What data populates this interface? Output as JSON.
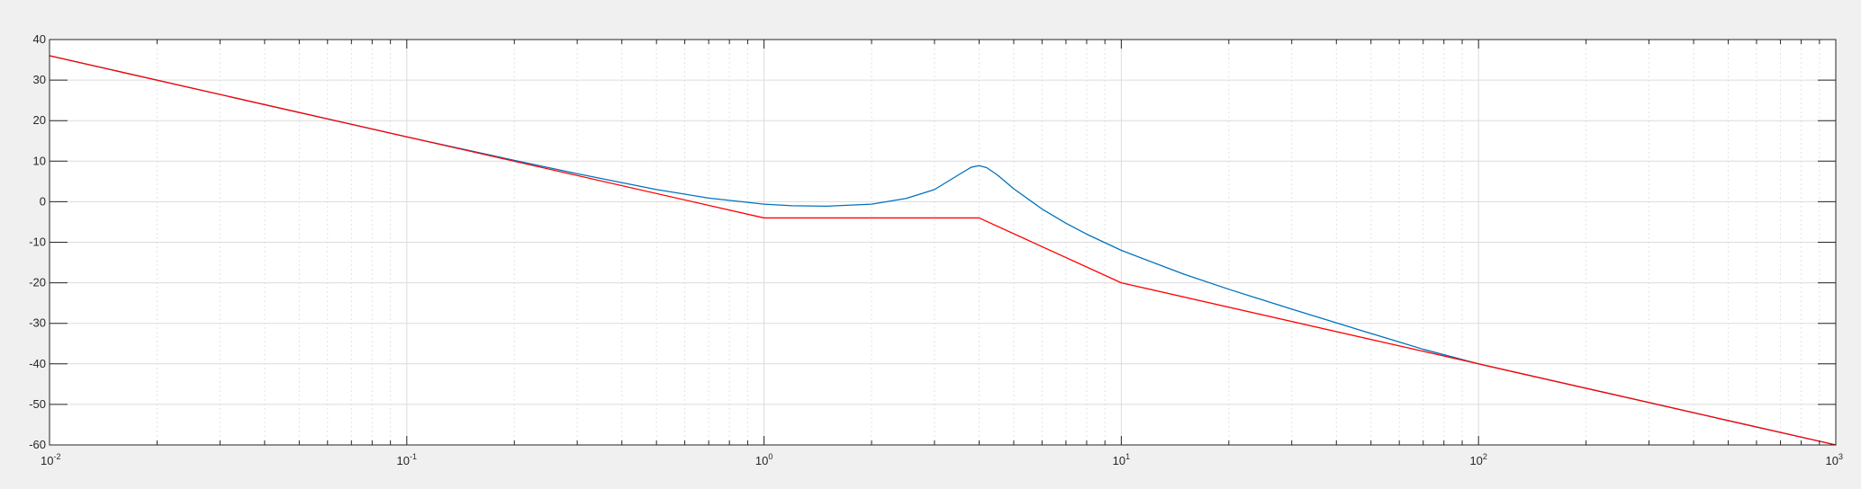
{
  "chart_data": {
    "type": "line",
    "title": "",
    "xlabel": "",
    "ylabel": "",
    "x_scale": "log",
    "xlim": [
      0.01,
      1000
    ],
    "ylim": [
      -60,
      40
    ],
    "grid": true,
    "minor_grid_x": true,
    "background_color": "#f0f0f0",
    "axes_color": "#ffffff",
    "x_ticks": [
      {
        "value": 0.01,
        "base": "10",
        "exp": "-2"
      },
      {
        "value": 0.1,
        "base": "10",
        "exp": "-1"
      },
      {
        "value": 1,
        "base": "10",
        "exp": "0"
      },
      {
        "value": 10,
        "base": "10",
        "exp": "1"
      },
      {
        "value": 100,
        "base": "10",
        "exp": "2"
      },
      {
        "value": 1000,
        "base": "10",
        "exp": "3"
      }
    ],
    "y_ticks": [
      40,
      30,
      20,
      10,
      0,
      -10,
      -20,
      -30,
      -40,
      -50,
      -60
    ],
    "y_tick_labels": [
      "40",
      "30",
      "20",
      "10",
      "0",
      "-10",
      "-20",
      "-30",
      "-40",
      "-50",
      "-60"
    ],
    "series": [
      {
        "color": "#0072bd",
        "points": [
          [
            0.01,
            36.0
          ],
          [
            0.02,
            30.0
          ],
          [
            0.05,
            22.0
          ],
          [
            0.1,
            16.0
          ],
          [
            0.2,
            10.2
          ],
          [
            0.3,
            6.9
          ],
          [
            0.5,
            3.0
          ],
          [
            0.7,
            0.9
          ],
          [
            1.0,
            -0.6
          ],
          [
            1.2,
            -1.0
          ],
          [
            1.5,
            -1.1
          ],
          [
            2.0,
            -0.6
          ],
          [
            2.5,
            0.8
          ],
          [
            3.0,
            3.0
          ],
          [
            3.5,
            6.6
          ],
          [
            3.8,
            8.5
          ],
          [
            4.0,
            8.9
          ],
          [
            4.2,
            8.4
          ],
          [
            4.5,
            6.6
          ],
          [
            5.0,
            3.2
          ],
          [
            6.0,
            -1.8
          ],
          [
            7.0,
            -5.3
          ],
          [
            8.0,
            -8.0
          ],
          [
            10.0,
            -12.0
          ],
          [
            15.0,
            -17.9
          ],
          [
            20.0,
            -21.6
          ],
          [
            30.0,
            -26.5
          ],
          [
            50.0,
            -32.5
          ],
          [
            70.0,
            -36.4
          ],
          [
            100.0,
            -40.0
          ],
          [
            200.0,
            -46.0
          ],
          [
            500.0,
            -54.0
          ],
          [
            1000.0,
            -60.0
          ]
        ]
      },
      {
        "color": "#ff0000",
        "points": [
          [
            0.01,
            36.0
          ],
          [
            0.1,
            16.0
          ],
          [
            1.0,
            -4.0
          ],
          [
            4.0,
            -4.0
          ],
          [
            10.0,
            -20.0
          ],
          [
            100.0,
            -40.0
          ],
          [
            1000.0,
            -60.0
          ]
        ]
      }
    ]
  }
}
